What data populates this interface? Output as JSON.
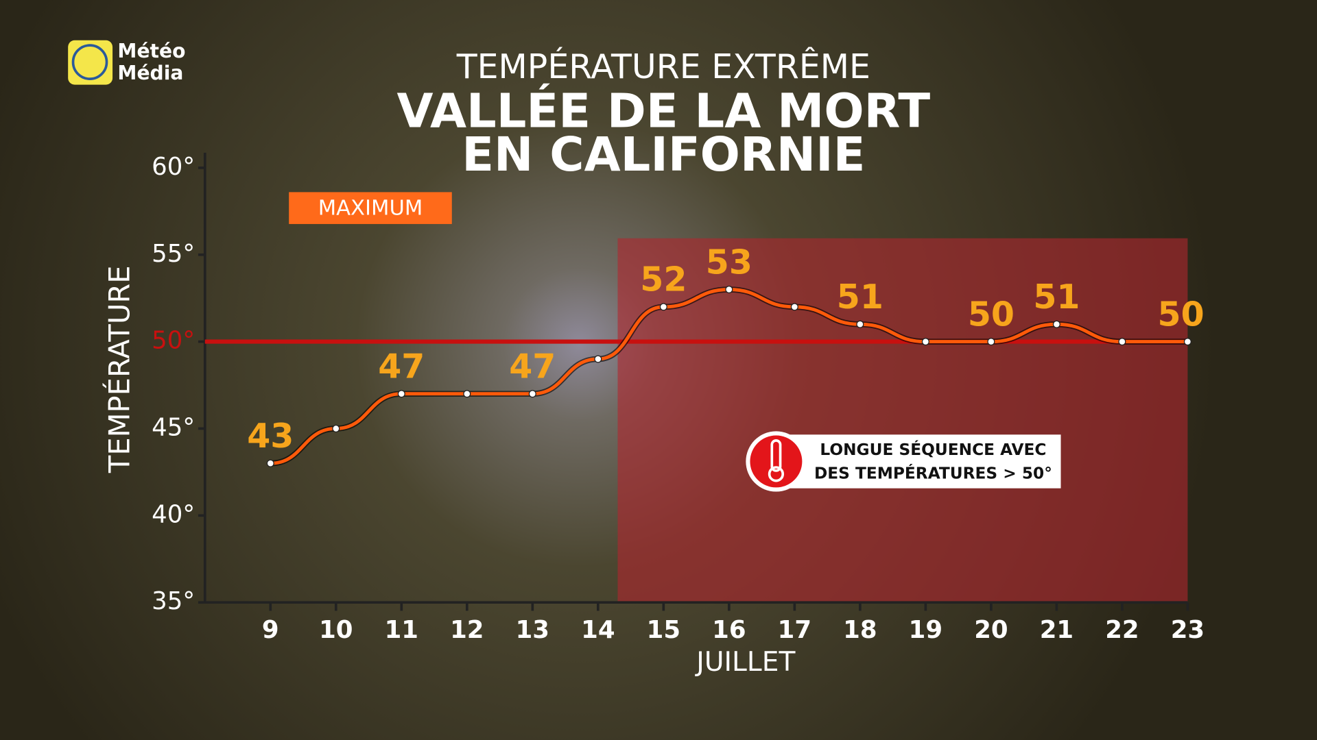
{
  "logo": [
    "Météo",
    "Média"
  ],
  "chart_data": {
    "type": "line",
    "title": "TEMPÉRATURE EXTRÊME",
    "subtitle": [
      "VALLÉE DE LA MORT",
      "EN CALIFORNIE"
    ],
    "legend": "MAXIMUM",
    "y_label": "TEMPÉRATURE",
    "x_label": "JUILLET",
    "annotation": [
      "LONGUE SÉQUENCE AVEC",
      "DES TEMPÉRATURES > 50°"
    ],
    "x": [
      9,
      10,
      11,
      12,
      13,
      14,
      15,
      16,
      17,
      18,
      19,
      20,
      21,
      22,
      23
    ],
    "series": [
      {
        "name": "MAXIMUM",
        "color": "#ff5a0a",
        "values": [
          43,
          45,
          47,
          47,
          47,
          49,
          52,
          53,
          52,
          51,
          50,
          50,
          51,
          50,
          50
        ],
        "value_labels": [
          "43",
          null,
          "47",
          null,
          "47",
          null,
          "52",
          "53",
          null,
          "51",
          null,
          "50",
          "51",
          null,
          "50"
        ]
      }
    ],
    "label_color": "#f7a51c",
    "threshold": 50,
    "threshold_color": "#c8100f",
    "highlight_range": [
      14.3,
      23
    ],
    "highlight_color": "#b0262f",
    "xlim": [
      8,
      23
    ],
    "xticks": [
      9,
      10,
      11,
      12,
      13,
      14,
      15,
      16,
      17,
      18,
      19,
      20,
      21,
      22,
      23
    ],
    "ylim": [
      35,
      60
    ],
    "yticks": [
      {
        "value": 35,
        "label": "35°"
      },
      {
        "value": 40,
        "label": "40°"
      },
      {
        "value": 45,
        "label": "45°"
      },
      {
        "value": 50,
        "label": "50°"
      },
      {
        "value": 55,
        "label": "55°"
      },
      {
        "value": 60,
        "label": "60°"
      }
    ]
  }
}
